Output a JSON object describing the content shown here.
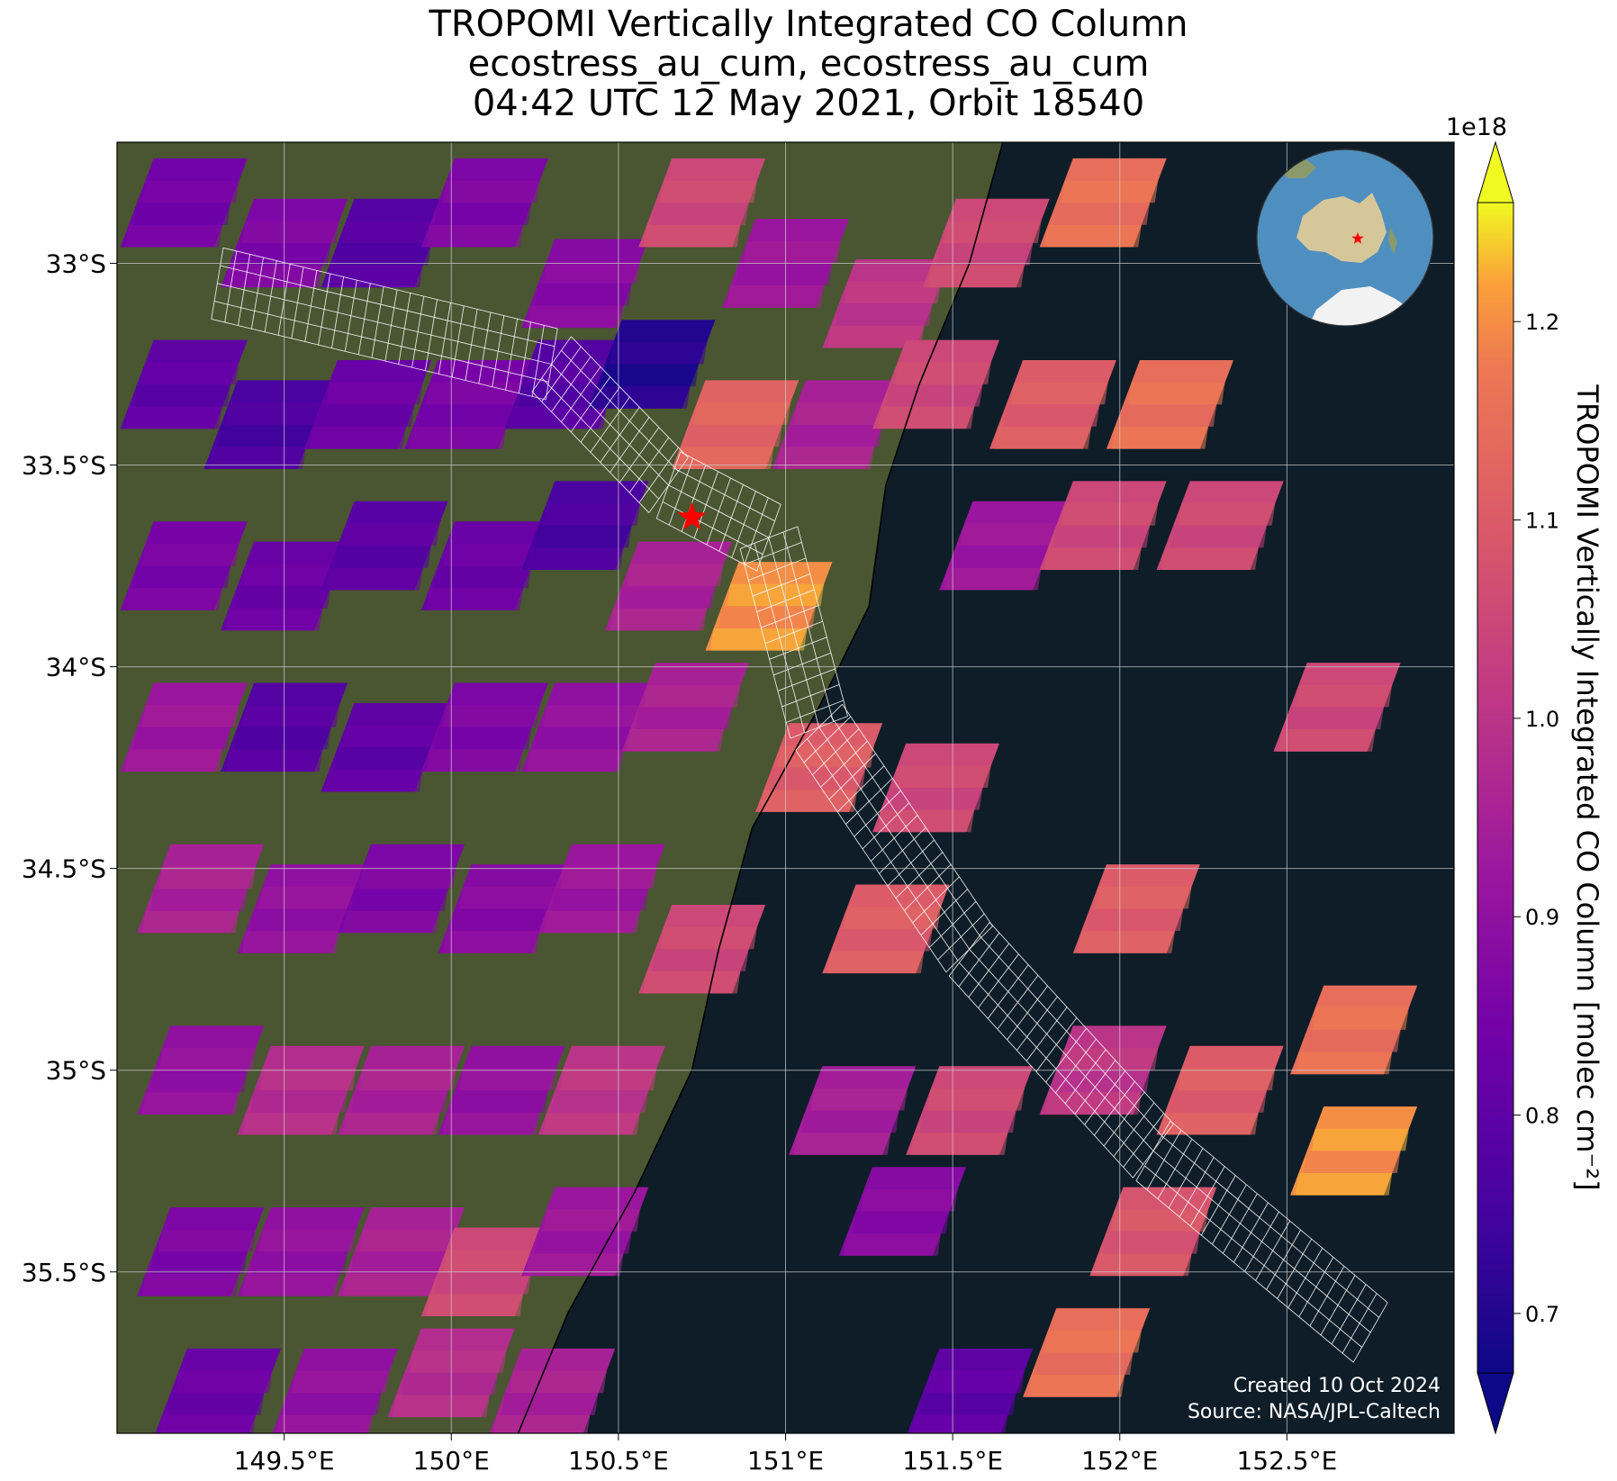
{
  "title": {
    "line1": "TROPOMI Vertically Integrated CO Column",
    "line2": "ecostress_au_cum, ecostress_au_cum",
    "line3": "04:42 UTC 12 May 2021, Orbit 18540"
  },
  "map": {
    "lon_range": [
      149.0,
      153.0
    ],
    "lat_range": [
      -35.9,
      -32.7
    ],
    "lon_ticks": [
      {
        "value": 149.5,
        "label": "149.5°E"
      },
      {
        "value": 150.0,
        "label": "150°E"
      },
      {
        "value": 150.5,
        "label": "150.5°E"
      },
      {
        "value": 151.0,
        "label": "151°E"
      },
      {
        "value": 151.5,
        "label": "151.5°E"
      },
      {
        "value": 152.0,
        "label": "152°E"
      },
      {
        "value": 152.5,
        "label": "152.5°E"
      }
    ],
    "lat_ticks": [
      {
        "value": -33.0,
        "label": "33°S"
      },
      {
        "value": -33.5,
        "label": "33.5°S"
      },
      {
        "value": -34.0,
        "label": "34°S"
      },
      {
        "value": -34.5,
        "label": "34.5°S"
      },
      {
        "value": -35.0,
        "label": "35°S"
      },
      {
        "value": -35.5,
        "label": "35.5°S"
      }
    ],
    "grid": true,
    "marker": {
      "lon": 150.72,
      "lat": -33.63,
      "shape": "star",
      "color": "#ff0000"
    },
    "colors": {
      "ocean": "#0e1d28",
      "land": "#4a5532",
      "coastline": "#000000",
      "grid": "#cfcfcf",
      "footprint": "#ffffff"
    },
    "watermark_line1": "Created 10 Oct 2024",
    "watermark_line2": "Source: NASA/JPL-Caltech",
    "inset_globe": {
      "center": "Australia",
      "marker_color": "#ff0000"
    }
  },
  "colorbar": {
    "label": "TROPOMI Vertically Integrated CO Column [molec cm⁻²]",
    "exponent": "1e18",
    "colormap": "plasma",
    "vmin": 0.67,
    "vmax": 1.26,
    "ticks": [
      {
        "value": 0.7,
        "label": "0.7"
      },
      {
        "value": 0.8,
        "label": "0.8"
      },
      {
        "value": 0.9,
        "label": "0.9"
      },
      {
        "value": 1.0,
        "label": "1.0"
      },
      {
        "value": 1.1,
        "label": "1.1"
      },
      {
        "value": 1.2,
        "label": "1.2"
      }
    ],
    "extend": "both"
  },
  "chart_data": {
    "type": "heatmap",
    "units": "molec cm^-2 (x1e18)",
    "land_boundary_lon_by_lat": [
      [
        -32.7,
        151.65
      ],
      [
        -33.0,
        151.55
      ],
      [
        -33.3,
        151.4
      ],
      [
        -33.55,
        151.3
      ],
      [
        -33.85,
        151.25
      ],
      [
        -34.1,
        151.1
      ],
      [
        -34.4,
        150.9
      ],
      [
        -34.7,
        150.8
      ],
      [
        -35.0,
        150.72
      ],
      [
        -35.3,
        150.55
      ],
      [
        -35.6,
        150.35
      ],
      [
        -35.9,
        150.2
      ]
    ],
    "swaths": [
      {
        "lon": 149.2,
        "lat": -32.85,
        "value": 0.84
      },
      {
        "lon": 149.5,
        "lat": -32.95,
        "value": 0.86
      },
      {
        "lon": 149.8,
        "lat": -32.95,
        "value": 0.78
      },
      {
        "lon": 150.1,
        "lat": -32.85,
        "value": 0.86
      },
      {
        "lon": 150.4,
        "lat": -33.05,
        "value": 0.88
      },
      {
        "lon": 150.75,
        "lat": -32.85,
        "value": 1.05
      },
      {
        "lon": 151.0,
        "lat": -33.0,
        "value": 0.92
      },
      {
        "lon": 151.3,
        "lat": -33.1,
        "value": 1.0
      },
      {
        "lon": 151.6,
        "lat": -32.95,
        "value": 1.05
      },
      {
        "lon": 151.95,
        "lat": -32.85,
        "value": 1.15
      },
      {
        "lon": 149.2,
        "lat": -33.3,
        "value": 0.8
      },
      {
        "lon": 149.45,
        "lat": -33.4,
        "value": 0.76
      },
      {
        "lon": 149.75,
        "lat": -33.35,
        "value": 0.82
      },
      {
        "lon": 150.05,
        "lat": -33.35,
        "value": 0.85
      },
      {
        "lon": 150.35,
        "lat": -33.3,
        "value": 0.78
      },
      {
        "lon": 150.6,
        "lat": -33.25,
        "value": 0.7
      },
      {
        "lon": 150.85,
        "lat": -33.4,
        "value": 1.12
      },
      {
        "lon": 151.15,
        "lat": -33.4,
        "value": 0.95
      },
      {
        "lon": 151.45,
        "lat": -33.3,
        "value": 1.05
      },
      {
        "lon": 151.8,
        "lat": -33.35,
        "value": 1.1
      },
      {
        "lon": 152.15,
        "lat": -33.35,
        "value": 1.15
      },
      {
        "lon": 152.3,
        "lat": -33.65,
        "value": 1.05
      },
      {
        "lon": 149.2,
        "lat": -33.75,
        "value": 0.85
      },
      {
        "lon": 149.5,
        "lat": -33.8,
        "value": 0.82
      },
      {
        "lon": 149.8,
        "lat": -33.7,
        "value": 0.79
      },
      {
        "lon": 150.1,
        "lat": -33.75,
        "value": 0.82
      },
      {
        "lon": 150.4,
        "lat": -33.65,
        "value": 0.76
      },
      {
        "lon": 150.65,
        "lat": -33.8,
        "value": 0.95
      },
      {
        "lon": 150.95,
        "lat": -33.85,
        "value": 1.2
      },
      {
        "lon": 151.65,
        "lat": -33.7,
        "value": 0.92
      },
      {
        "lon": 151.95,
        "lat": -33.65,
        "value": 1.05
      },
      {
        "lon": 152.65,
        "lat": -34.1,
        "value": 1.05
      },
      {
        "lon": 149.2,
        "lat": -34.15,
        "value": 0.92
      },
      {
        "lon": 149.5,
        "lat": -34.15,
        "value": 0.78
      },
      {
        "lon": 149.8,
        "lat": -34.2,
        "value": 0.8
      },
      {
        "lon": 150.1,
        "lat": -34.15,
        "value": 0.86
      },
      {
        "lon": 150.4,
        "lat": -34.15,
        "value": 0.9
      },
      {
        "lon": 150.7,
        "lat": -34.1,
        "value": 0.95
      },
      {
        "lon": 151.1,
        "lat": -34.25,
        "value": 1.1
      },
      {
        "lon": 151.45,
        "lat": -34.3,
        "value": 1.05
      },
      {
        "lon": 149.25,
        "lat": -34.55,
        "value": 0.95
      },
      {
        "lon": 149.55,
        "lat": -34.6,
        "value": 0.9
      },
      {
        "lon": 149.85,
        "lat": -34.55,
        "value": 0.86
      },
      {
        "lon": 150.15,
        "lat": -34.6,
        "value": 0.88
      },
      {
        "lon": 150.45,
        "lat": -34.55,
        "value": 0.92
      },
      {
        "lon": 150.75,
        "lat": -34.7,
        "value": 1.05
      },
      {
        "lon": 151.3,
        "lat": -34.65,
        "value": 1.1
      },
      {
        "lon": 152.05,
        "lat": -34.6,
        "value": 1.1
      },
      {
        "lon": 149.25,
        "lat": -35.0,
        "value": 0.9
      },
      {
        "lon": 149.55,
        "lat": -35.05,
        "value": 0.98
      },
      {
        "lon": 149.85,
        "lat": -35.05,
        "value": 0.95
      },
      {
        "lon": 150.15,
        "lat": -35.05,
        "value": 0.9
      },
      {
        "lon": 150.45,
        "lat": -35.05,
        "value": 1.0
      },
      {
        "lon": 151.2,
        "lat": -35.1,
        "value": 0.94
      },
      {
        "lon": 151.55,
        "lat": -35.1,
        "value": 1.05
      },
      {
        "lon": 151.95,
        "lat": -35.0,
        "value": 1.0
      },
      {
        "lon": 152.3,
        "lat": -35.05,
        "value": 1.1
      },
      {
        "lon": 152.7,
        "lat": -34.9,
        "value": 1.15
      },
      {
        "lon": 149.25,
        "lat": -35.45,
        "value": 0.86
      },
      {
        "lon": 149.55,
        "lat": -35.45,
        "value": 0.9
      },
      {
        "lon": 149.85,
        "lat": -35.45,
        "value": 0.95
      },
      {
        "lon": 150.1,
        "lat": -35.5,
        "value": 1.05
      },
      {
        "lon": 150.4,
        "lat": -35.4,
        "value": 0.92
      },
      {
        "lon": 151.35,
        "lat": -35.35,
        "value": 0.88
      },
      {
        "lon": 152.1,
        "lat": -35.4,
        "value": 1.08
      },
      {
        "lon": 152.7,
        "lat": -35.2,
        "value": 1.2
      },
      {
        "lon": 149.3,
        "lat": -35.8,
        "value": 0.82
      },
      {
        "lon": 149.65,
        "lat": -35.8,
        "value": 0.9
      },
      {
        "lon": 150.0,
        "lat": -35.75,
        "value": 0.98
      },
      {
        "lon": 150.3,
        "lat": -35.8,
        "value": 0.95
      },
      {
        "lon": 151.55,
        "lat": -35.8,
        "value": 0.8
      },
      {
        "lon": 151.9,
        "lat": -35.7,
        "value": 1.15
      }
    ],
    "footprint": [
      [
        149.3,
        -33.05
      ],
      [
        150.3,
        -33.25
      ],
      [
        150.65,
        -33.55
      ],
      [
        150.95,
        -33.68
      ],
      [
        151.1,
        -34.15
      ],
      [
        151.55,
        -34.7
      ],
      [
        152.1,
        -35.2
      ],
      [
        152.75,
        -35.65
      ]
    ]
  }
}
